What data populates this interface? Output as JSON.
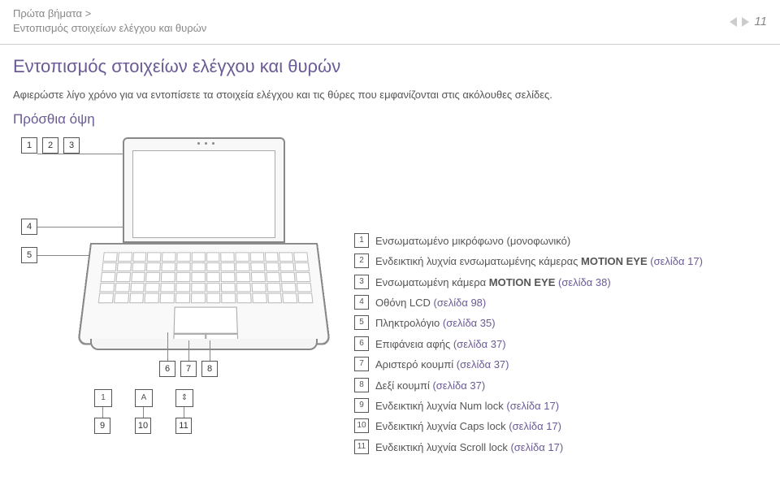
{
  "breadcrumb": {
    "line1": "Πρώτα βήματα >",
    "line2": "Εντοπισμός στοιχείων ελέγχου και θυρών"
  },
  "page_number": "11",
  "title": "Εντοπισμός στοιχείων ελέγχου και θυρών",
  "intro": "Αφιερώστε λίγο χρόνο για να εντοπίσετε τα στοιχεία ελέγχου και τις θύρες που εμφανίζονται στις ακόλουθες σελίδες.",
  "subhead": "Πρόσθια όψη",
  "motion_label": "MOTION EYE",
  "indicator_icons": {
    "a": "1",
    "b": "A",
    "c": "⇕"
  },
  "items": [
    {
      "n": "1",
      "text": "Ενσωματωμένο μικρόφωνο (μονοφωνικό)",
      "link": ""
    },
    {
      "n": "2",
      "text": "Ενδεικτική λυχνία ενσωματωμένης κάμερας ",
      "bold": "MOTION EYE",
      "link": "(σελίδα 17)"
    },
    {
      "n": "3",
      "text": "Ενσωματωμένη κάμερα ",
      "bold": "MOTION EYE",
      "link": " (σελίδα 38)"
    },
    {
      "n": "4",
      "text": "Οθόνη LCD ",
      "link": "(σελίδα 98)"
    },
    {
      "n": "5",
      "text": "Πληκτρολόγιο ",
      "link": "(σελίδα 35)"
    },
    {
      "n": "6",
      "text": "Επιφάνεια αφής ",
      "link": "(σελίδα 37)"
    },
    {
      "n": "7",
      "text": "Αριστερό κουμπί ",
      "link": "(σελίδα 37)"
    },
    {
      "n": "8",
      "text": "Δεξί κουμπί ",
      "link": "(σελίδα 37)"
    },
    {
      "n": "9",
      "text": "Ενδεικτική λυχνία Num lock ",
      "link": "(σελίδα 17)"
    },
    {
      "n": "10",
      "text": "Ενδεικτική λυχνία Caps lock ",
      "link": "(σελίδα 17)"
    },
    {
      "n": "11",
      "text": "Ενδεικτική λυχνία Scroll lock ",
      "link": "(σελίδα 17)"
    }
  ]
}
